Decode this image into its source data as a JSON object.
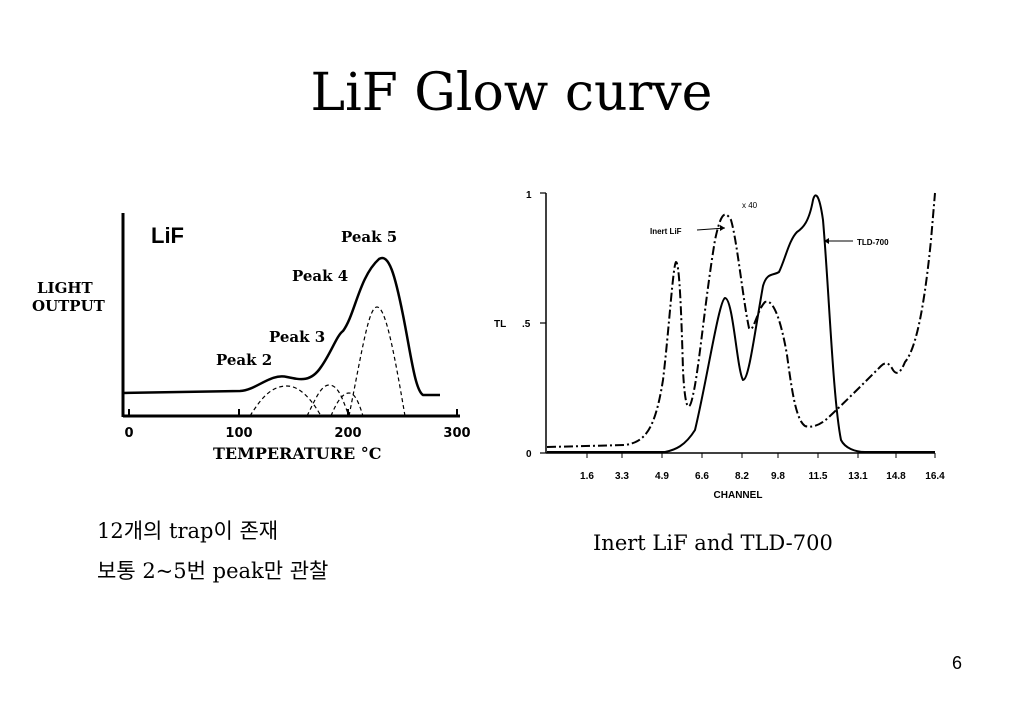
{
  "title": "LiF Glow curve",
  "left_figure": {
    "label_lif": "LiF",
    "ylabel_line1": "LIGHT",
    "ylabel_line2": "OUTPUT",
    "xlabel": "TEMPERATURE °C",
    "xticks": [
      "0",
      "100",
      "200",
      "300"
    ],
    "peaks": [
      "Peak 2",
      "Peak 3",
      "Peak 4",
      "Peak 5"
    ]
  },
  "right_figure": {
    "ylabel": "TL",
    "yticks": [
      "1",
      ".5",
      "0"
    ],
    "xticks": [
      "1.6",
      "3.3",
      "4.9",
      "6.6",
      "8.2",
      "9.8",
      "11.5",
      "13.1",
      "14.8",
      "16.4"
    ],
    "xlabel": "CHANNEL",
    "annotation_x40": "x 40",
    "label_inert": "Inert LiF",
    "label_tld": "TLD-700"
  },
  "notes": [
    "12개의 trap이 존재",
    "보통 2~5번 peak만 관찰"
  ],
  "caption": "Inert LiF and TLD-700",
  "page_number": "6"
}
